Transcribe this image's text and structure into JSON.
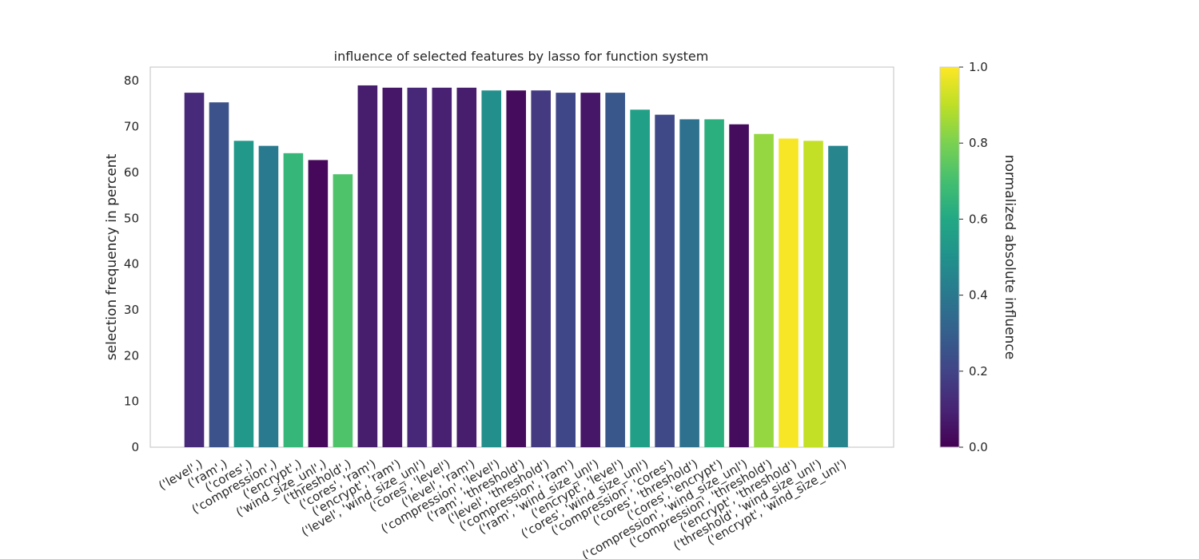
{
  "chart_data": {
    "type": "bar",
    "title": "influence of selected features by lasso for function system",
    "xlabel": "",
    "ylabel": "selection frequency in percent",
    "ylim": [
      0,
      83
    ],
    "yticks": [
      0,
      10,
      20,
      30,
      40,
      50,
      60,
      70,
      80
    ],
    "grid": false,
    "categories": [
      "('level',)",
      "('ram',)",
      "('cores',)",
      "('compression',)",
      "('encrypt',)",
      "('wind_size_unl',)",
      "('threshold',)",
      "('cores', 'ram')",
      "('encrypt', 'ram')",
      "('level', 'wind_size_unl')",
      "('cores', 'level')",
      "('level', 'ram')",
      "('compression', 'level')",
      "('ram', 'threshold')",
      "('level', 'threshold')",
      "('compression', 'ram')",
      "('ram', 'wind_size_unl')",
      "('encrypt', 'level')",
      "('cores', 'wind_size_unl')",
      "('compression', 'cores')",
      "('cores', 'threshold')",
      "('cores', 'encrypt')",
      "('compression', 'wind_size_unl')",
      "('compression', 'threshold')",
      "('encrypt', 'threshold')",
      "('threshold', 'wind_size_unl')",
      "('encrypt', 'wind_size_unl')"
    ],
    "values": [
      77.4,
      75.3,
      66.9,
      65.8,
      64.2,
      62.7,
      59.6,
      79.0,
      78.5,
      78.5,
      78.5,
      78.5,
      77.9,
      77.9,
      77.9,
      77.4,
      77.4,
      77.4,
      73.7,
      72.6,
      71.6,
      71.6,
      70.5,
      68.4,
      67.4,
      66.9,
      65.8
    ],
    "influence": [
      0.12,
      0.25,
      0.53,
      0.41,
      0.66,
      0.02,
      0.72,
      0.08,
      0.06,
      0.11,
      0.09,
      0.08,
      0.49,
      0.03,
      0.17,
      0.21,
      0.06,
      0.27,
      0.56,
      0.22,
      0.37,
      0.63,
      0.03,
      0.84,
      0.99,
      0.91,
      0.45
    ],
    "colorbar": {
      "label": "normalized absolute influence",
      "colormap": "viridis",
      "range": [
        0.0,
        1.0
      ],
      "ticks": [
        "0.0",
        "0.2",
        "0.4",
        "0.6",
        "0.8",
        "1.0"
      ]
    }
  }
}
